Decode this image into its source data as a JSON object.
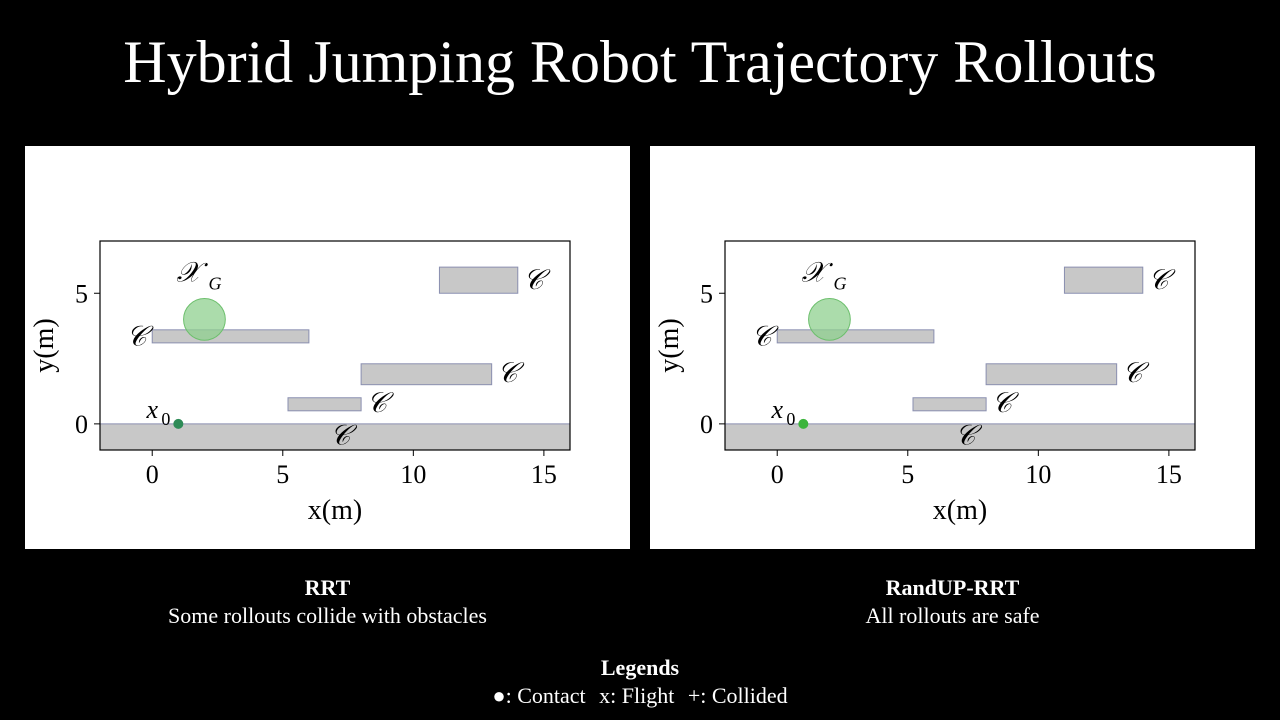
{
  "title": "Hybrid Jumping Robot Trajectory Rollouts",
  "colors": {
    "obstacle": "#c8c8c8",
    "obstacle_edge": "#8a8fb0",
    "goal": "#8fd08f",
    "start_left": "#2e8b57",
    "start_right": "#3cb43c"
  },
  "chart_data": [
    {
      "type": "scatter",
      "xlabel": "x(m)",
      "ylabel": "y(m)",
      "xlim": [
        -2,
        16
      ],
      "ylim": [
        -1,
        7
      ],
      "xticks": [
        0,
        5,
        10,
        15
      ],
      "yticks": [
        0,
        5
      ],
      "grid": false,
      "goal": {
        "label": "𝒳",
        "sub": "G",
        "x": 2,
        "y": 4,
        "r": 0.8
      },
      "start": {
        "label": "x",
        "sub": "0",
        "x": 1,
        "y": 0
      },
      "obstacles": [
        {
          "label": "𝒞",
          "x0": -2,
          "x1": 16,
          "y0": -1,
          "y1": 0
        },
        {
          "label": "𝒞",
          "x0": 0,
          "x1": 6,
          "y0": 3.1,
          "y1": 3.6
        },
        {
          "label": "𝒞",
          "x0": 5.2,
          "x1": 8,
          "y0": 0.5,
          "y1": 1
        },
        {
          "label": "𝒞",
          "x0": 8,
          "x1": 13,
          "y0": 1.5,
          "y1": 2.3
        },
        {
          "label": "𝒞",
          "x0": 11,
          "x1": 14,
          "y0": 5,
          "y1": 6
        }
      ],
      "caption_name": "RRT",
      "caption_desc": "Some rollouts collide with obstacles"
    },
    {
      "type": "scatter",
      "xlabel": "x(m)",
      "ylabel": "y(m)",
      "xlim": [
        -2,
        16
      ],
      "ylim": [
        -1,
        7
      ],
      "xticks": [
        0,
        5,
        10,
        15
      ],
      "yticks": [
        0,
        5
      ],
      "grid": false,
      "goal": {
        "label": "𝒳",
        "sub": "G",
        "x": 2,
        "y": 4,
        "r": 0.8
      },
      "start": {
        "label": "x",
        "sub": "0",
        "x": 1,
        "y": 0
      },
      "obstacles": [
        {
          "label": "𝒞",
          "x0": -2,
          "x1": 16,
          "y0": -1,
          "y1": 0
        },
        {
          "label": "𝒞",
          "x0": 0,
          "x1": 6,
          "y0": 3.1,
          "y1": 3.6
        },
        {
          "label": "𝒞",
          "x0": 5.2,
          "x1": 8,
          "y0": 0.5,
          "y1": 1
        },
        {
          "label": "𝒞",
          "x0": 8,
          "x1": 13,
          "y0": 1.5,
          "y1": 2.3
        },
        {
          "label": "𝒞",
          "x0": 11,
          "x1": 14,
          "y0": 5,
          "y1": 6
        }
      ],
      "caption_name": "RandUP-RRT",
      "caption_desc": "All rollouts are safe"
    }
  ],
  "legends": {
    "title": "Legends",
    "contact": "●: Contact",
    "flight": "x: Flight",
    "collided": "+: Collided"
  }
}
